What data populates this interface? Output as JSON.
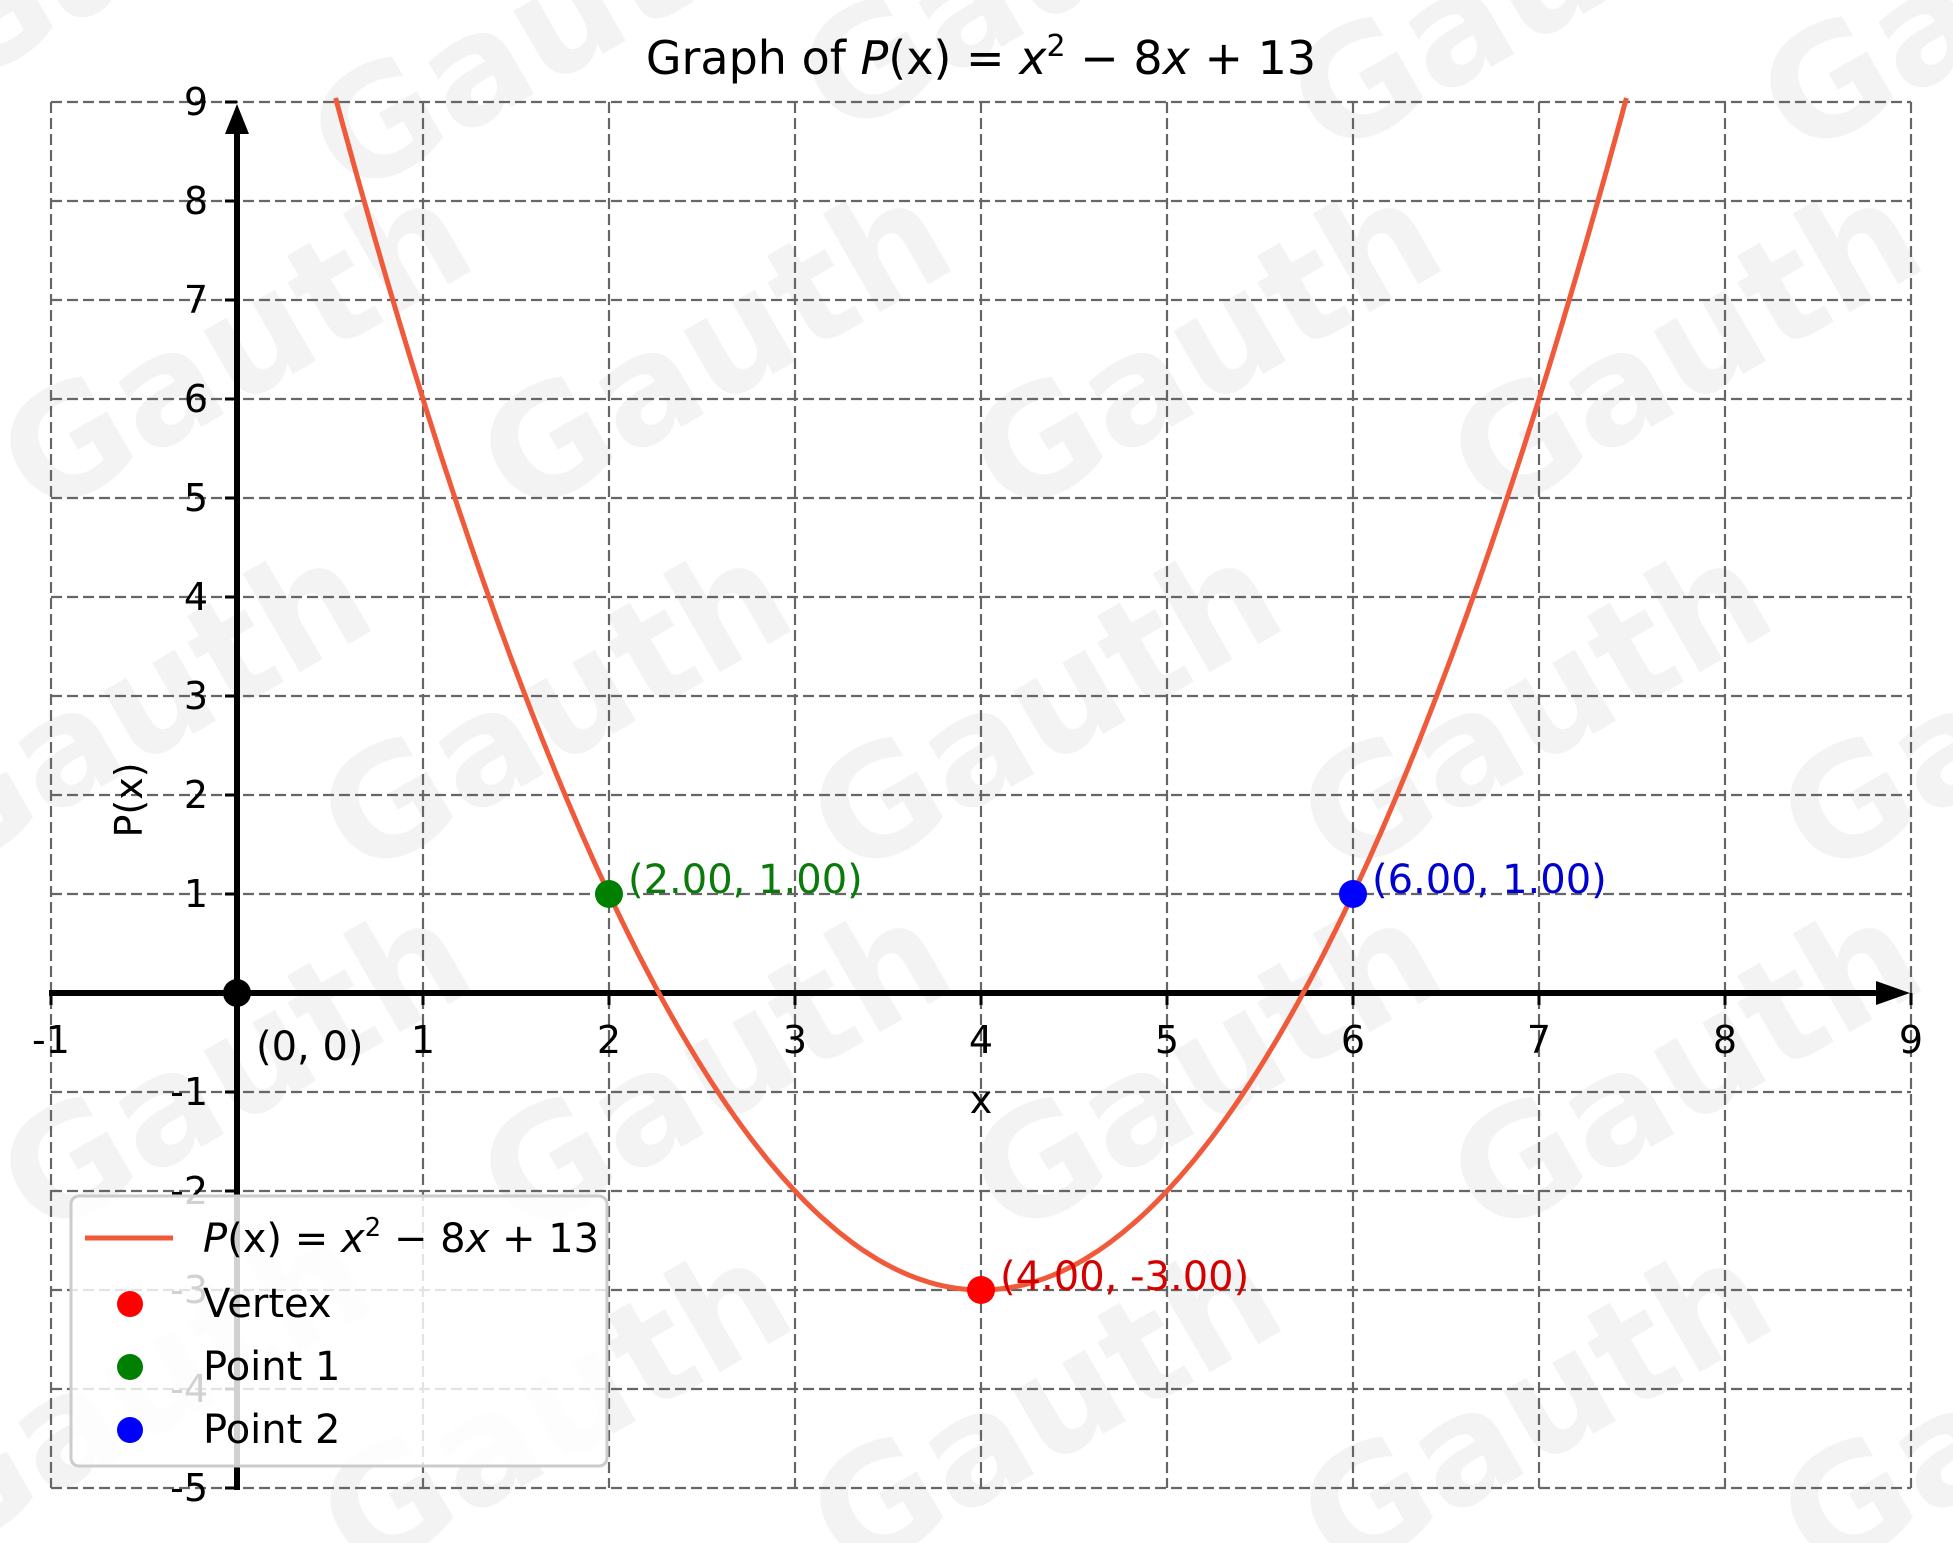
{
  "chart_data": {
    "type": "line",
    "title": "Graph of P(x) = x² − 8x + 13",
    "title_parts": {
      "prefix": "Graph of ",
      "fn": "P",
      "arg": "(x)",
      "eq": " = ",
      "x2": "x",
      "sup": "2",
      "rest1": " − 8",
      "rest_x": "x",
      "rest2": " + 13"
    },
    "xlabel": "x",
    "ylabel": "P(x)",
    "xlim": [
      -1,
      9
    ],
    "ylim": [
      -5,
      9
    ],
    "grid": true,
    "grid_style": "dashed",
    "x_ticks": [
      "-1",
      "1",
      "2",
      "3",
      "4",
      "5",
      "6",
      "7",
      "8",
      "9"
    ],
    "y_ticks": [
      "9",
      "8",
      "7",
      "6",
      "5",
      "4",
      "3",
      "2",
      "1",
      "-1",
      "-2",
      "-3",
      "-4",
      "-5"
    ],
    "series": [
      {
        "name": "P(x) = x² − 8x + 13",
        "kind": "line",
        "color": "#f05a3a",
        "function": "x^2 - 8x + 13",
        "x_range_visible": [
          0.53,
          7.47
        ]
      },
      {
        "name": "Vertex",
        "kind": "point",
        "color": "#ff0000",
        "x": 4,
        "y": -3,
        "label": "(4.00, -3.00)"
      },
      {
        "name": "Point 1",
        "kind": "point",
        "color": "#008000",
        "x": 2,
        "y": 1,
        "label": "(2.00, 1.00)"
      },
      {
        "name": "Point 2",
        "kind": "point",
        "color": "#0000ff",
        "x": 6,
        "y": 1,
        "label": "(6.00, 1.00)"
      }
    ],
    "annotations": [
      {
        "text": "(0, 0)",
        "x": 0,
        "y": 0,
        "color": "#000000"
      }
    ],
    "legend": {
      "position": "lower left",
      "entries": [
        {
          "label_fn": "P",
          "label_arg": "(x)",
          "label_eq": " = ",
          "label_x": "x",
          "label_sup": "2",
          "label_rest1": " − 8",
          "label_rest_x": "x",
          "label_rest2": " + 13",
          "color": "#f05a3a",
          "marker": "line"
        },
        {
          "label": "Vertex",
          "color": "#ff0000",
          "marker": "circle"
        },
        {
          "label": "Point 1",
          "color": "#008000",
          "marker": "circle"
        },
        {
          "label": "Point 2",
          "color": "#0000ff",
          "marker": "circle"
        }
      ]
    },
    "colors": {
      "curve": "#f05a3a",
      "vertex": "#ff0000",
      "point1": "#008000",
      "point2": "#0000ff",
      "label_vertex": "#d40000",
      "label_point1": "#0a7a0a",
      "label_point2": "#0000d0",
      "grid": "#666666",
      "axes": "#000000"
    }
  },
  "watermark": "Gauth"
}
